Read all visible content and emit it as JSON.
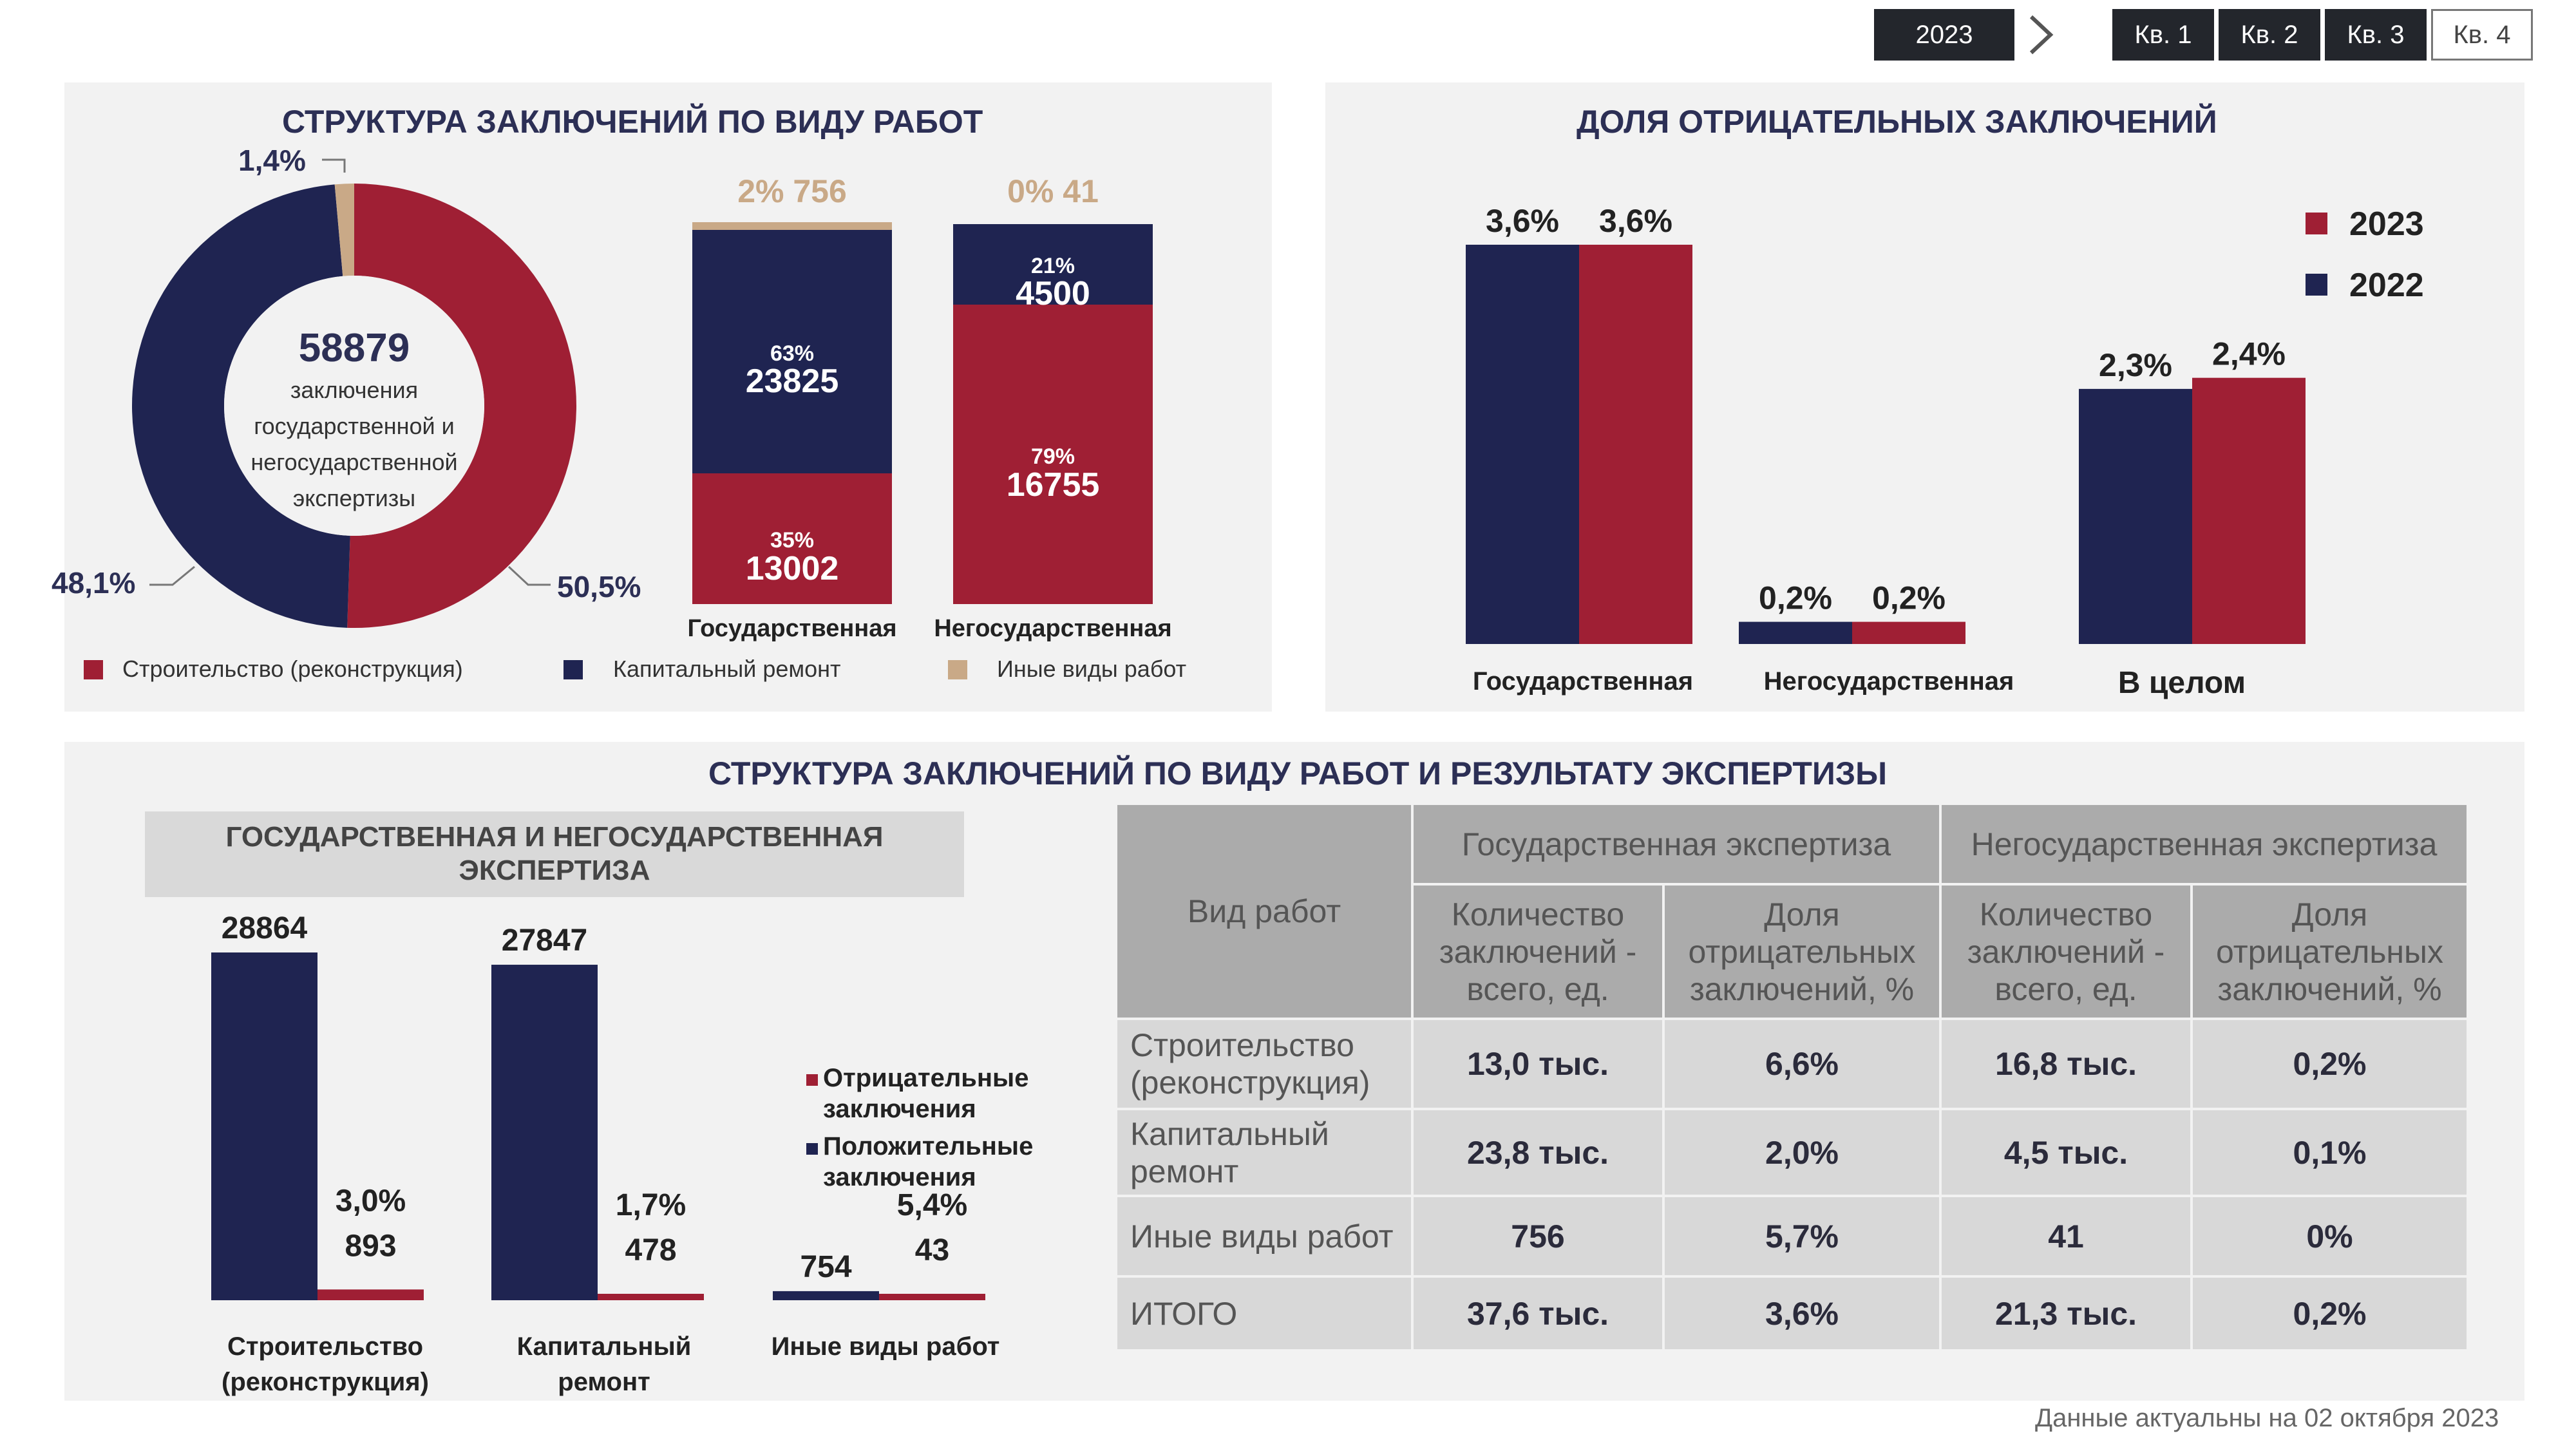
{
  "filters": {
    "year": "2023",
    "quarters": [
      "Кв. 1",
      "Кв. 2",
      "Кв. 3",
      "Кв. 4"
    ]
  },
  "colors": {
    "navy": "#1f2451",
    "red": "#9f1f34",
    "tan": "#c9a987",
    "panel": "#f2f2f2"
  },
  "structure": {
    "title": "СТРУКТУРА ЗАКЛЮЧЕНИЙ ПО ВИДУ РАБОТ",
    "donut": {
      "total": "58879",
      "center_text": [
        "заключения",
        "государственной и",
        "негосударственной",
        "экспертизы"
      ],
      "segments": [
        {
          "name": "Строительство (реконструкция)",
          "percent": 50.5,
          "label": "50,5%"
        },
        {
          "name": "Капитальный ремонт",
          "percent": 48.1,
          "label": "48,1%"
        },
        {
          "name": "Иные виды работ",
          "percent": 1.4,
          "label": "1,4%"
        }
      ]
    },
    "stacks": [
      {
        "category": "Государственная",
        "top_label": "2% 756",
        "navy_pct": "63%",
        "navy_val": "23825",
        "red_pct": "35%",
        "red_val": "13002"
      },
      {
        "category": "Негосударственная",
        "top_label": "0% 41",
        "navy_pct": "21%",
        "navy_val": "4500",
        "red_pct": "79%",
        "red_val": "16755"
      }
    ],
    "legend": [
      "Строительство (реконструкция)",
      "Капитальный ремонт",
      "Иные виды работ"
    ]
  },
  "negative": {
    "title": "ДОЛЯ ОТРИЦАТЕЛЬНЫХ ЗАКЛЮЧЕНИЙ",
    "legend": [
      "2023",
      "2022"
    ]
  },
  "chart_data": [
    {
      "type": "bar",
      "title": "ДОЛЯ ОТРИЦАТЕЛЬНЫХ ЗАКЛЮЧЕНИЙ",
      "categories": [
        "Государственная",
        "Негосударственная",
        "В целом"
      ],
      "series": [
        {
          "name": "2022",
          "values": [
            3.6,
            0.2,
            2.3
          ],
          "labels": [
            "3,6%",
            "0,2%",
            "2,3%"
          ],
          "color": "#1f2451"
        },
        {
          "name": "2023",
          "values": [
            3.6,
            0.2,
            2.4
          ],
          "labels": [
            "3,6%",
            "0,2%",
            "2,4%"
          ],
          "color": "#9f1f34"
        }
      ]
    },
    {
      "type": "bar",
      "categories": [
        "Строительство (реконструкция)",
        "Капитальный ремонт",
        "Иные виды работ"
      ],
      "series": [
        {
          "name": "Положительные заключения",
          "values": [
            28864,
            27847,
            754
          ],
          "labels": [
            "28864",
            "27847",
            "754"
          ],
          "color": "#1f2451"
        },
        {
          "name": "Отрицательные заключения",
          "values": [
            893,
            478,
            43
          ],
          "labels": [
            "893",
            "478",
            "43"
          ],
          "pct": [
            "3,0%",
            "1,7%",
            "5,4%"
          ],
          "color": "#9f1f34"
        }
      ]
    }
  ],
  "bottom": {
    "title": "СТРУКТУРА ЗАКЛЮЧЕНИЙ ПО ВИДУ РАБОТ И РЕЗУЛЬТАТУ ЭКСПЕРТИЗЫ",
    "subheader_line1": "ГОСУДАРСТВЕННАЯ И НЕГОСУДАРСТВЕННАЯ",
    "subheader_line2": "ЭКСПЕРТИЗА",
    "cat_labels": [
      [
        "Строительство",
        "(реконструкция)"
      ],
      [
        "Капитальный",
        "ремонт"
      ],
      [
        "Иные виды работ",
        ""
      ]
    ],
    "legend_neg": [
      "Отрицательные",
      "заключения"
    ],
    "legend_pos": [
      "Положительные",
      "заключения"
    ]
  },
  "table": {
    "col0": "Вид работ",
    "group1": "Государственная экспертиза",
    "group2": "Негосударственная экспертиза",
    "sub_count": [
      "Количество",
      "заключений -",
      "всего, ед."
    ],
    "sub_share": [
      "Доля",
      "отрицательных",
      "заключений, %"
    ],
    "rows": [
      {
        "label": [
          "Строительство",
          "(реконструкция)"
        ],
        "v": [
          "13,0 тыс.",
          "6,6%",
          "16,8 тыс.",
          "0,2%"
        ]
      },
      {
        "label": [
          "Капитальный",
          "ремонт"
        ],
        "v": [
          "23,8 тыс.",
          "2,0%",
          "4,5 тыс.",
          "0,1%"
        ]
      },
      {
        "label": [
          "Иные виды работ",
          ""
        ],
        "v": [
          "756",
          "5,7%",
          "41",
          "0%"
        ]
      },
      {
        "label": [
          "ИТОГО",
          ""
        ],
        "v": [
          "37,6 тыс.",
          "3,6%",
          "21,3 тыс.",
          "0,2%"
        ]
      }
    ]
  },
  "footer": "Данные актуальны на  02 октября 2023"
}
